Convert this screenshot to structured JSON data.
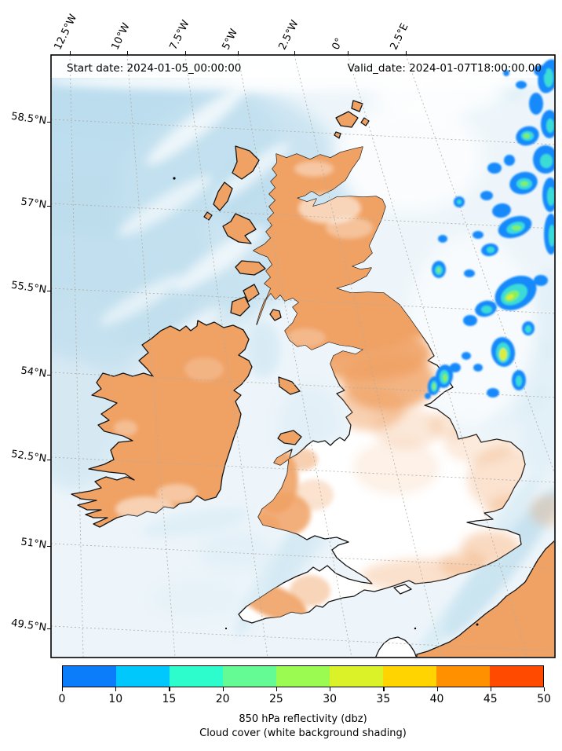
{
  "header": {
    "start_date": "Start date: 2024-01-05_00:00:00",
    "valid_date": "Valid_date: 2024-01-07T18:00:00.00"
  },
  "axes": {
    "top_ticks": [
      "12.5°W",
      "10°W",
      "7.5°W",
      "5°W",
      "2.5°W",
      "0°",
      "2.5°E"
    ],
    "left_ticks": [
      "58.5°N",
      "57°N",
      "55.5°N",
      "54°N",
      "52.5°N",
      "51°N",
      "49.5°N"
    ]
  },
  "colorbar": {
    "ticks": [
      "0",
      "10",
      "15",
      "20",
      "25",
      "30",
      "35",
      "40",
      "45",
      "50"
    ],
    "segment_colors": [
      "#0b7dfa",
      "#00c7fc",
      "#2dfccc",
      "#64fb95",
      "#9cfb50",
      "#dcf228",
      "#ffd400",
      "#ff9000",
      "#ff4a00"
    ],
    "label_line1": "850 hPa reflectivity (dbz)",
    "label_line2": "Cloud cover (white background shading)"
  },
  "colors": {
    "land": "#f0a265",
    "ocean": "#edf5fa",
    "ocean_blue": "#bfdeee",
    "grid": "#b0aba2",
    "refl_blue": "#1289fb",
    "refl_cyan": "#3bdcd6",
    "refl_green": "#84f05f",
    "refl_yellow": "#d9ee3c"
  }
}
